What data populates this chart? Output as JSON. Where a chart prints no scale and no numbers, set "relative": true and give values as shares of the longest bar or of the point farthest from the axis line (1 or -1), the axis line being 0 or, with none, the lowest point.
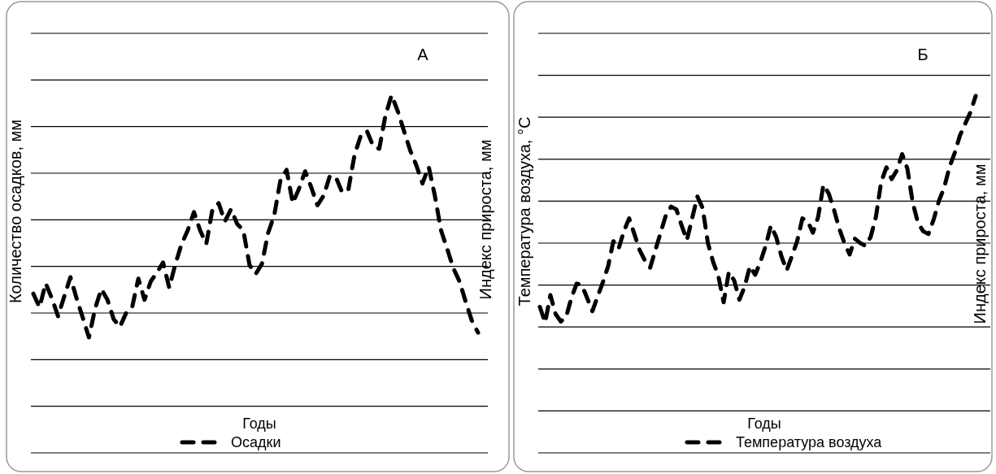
{
  "chart_data": [
    {
      "type": "line",
      "title": "А",
      "xlabel": "Годы",
      "ylabel": "Количество осадков, мм",
      "y2label": "Индекс прироста, мм",
      "relative": true,
      "grid": true,
      "legend": "bottom",
      "line_style": "dashed",
      "categories": [
        null,
        null,
        null,
        null,
        null,
        null,
        null,
        null,
        null,
        null,
        null,
        null,
        null,
        null,
        null,
        null,
        null,
        null,
        null,
        null,
        null,
        null,
        null,
        null,
        null,
        null,
        null,
        null,
        null,
        null,
        null,
        null,
        null,
        null,
        null,
        null,
        null,
        null,
        null,
        null,
        null,
        null,
        null,
        null,
        null,
        null,
        null,
        null,
        null,
        null,
        null,
        null,
        null,
        null,
        null,
        null,
        null,
        null,
        null,
        null,
        null,
        null,
        null,
        null,
        null,
        null,
        null,
        null,
        null,
        null,
        null,
        null,
        null
      ],
      "series": [
        {
          "name": "Осадки",
          "color": "#000000",
          "values": [
            0.445,
            0.407,
            0.474,
            0.432,
            0.382,
            0.437,
            0.491,
            0.432,
            0.378,
            0.323,
            0.403,
            0.458,
            0.428,
            0.374,
            0.352,
            0.39,
            0.407,
            0.487,
            0.428,
            0.479,
            0.504,
            0.532,
            0.462,
            0.528,
            0.584,
            0.622,
            0.673,
            0.622,
            0.584,
            0.681,
            0.698,
            0.647,
            0.681,
            0.64,
            0.622,
            0.525,
            0.5,
            0.528,
            0.614,
            0.664,
            0.762,
            0.791,
            0.698,
            0.738,
            0.787,
            0.742,
            0.692,
            0.719,
            0.774,
            0.77,
            0.728,
            0.736,
            0.833,
            0.886,
            0.9,
            0.858,
            0.85,
            0.943,
            1,
            0.955,
            0.9,
            0.846,
            0.804,
            0.753,
            0.8,
            0.719,
            0.622,
            0.57,
            0.516,
            0.479,
            0.422,
            0.369,
            0.336
          ]
        }
      ]
    },
    {
      "type": "line",
      "title": "Б",
      "xlabel": "Годы",
      "ylabel": "Температура воздуха, °С",
      "y2label": "Индекс прироста, мм",
      "relative": true,
      "grid": true,
      "legend": "bottom",
      "line_style": "dashed",
      "categories": [
        null,
        null,
        null,
        null,
        null,
        null,
        null,
        null,
        null,
        null,
        null,
        null,
        null,
        null,
        null,
        null,
        null,
        null,
        null,
        null,
        null,
        null,
        null,
        null,
        null,
        null,
        null,
        null,
        null,
        null,
        null,
        null,
        null,
        null,
        null,
        null,
        null,
        null,
        null,
        null,
        null,
        null,
        null,
        null,
        null,
        null,
        null,
        null,
        null,
        null,
        null,
        null,
        null,
        null,
        null,
        null,
        null,
        null,
        null,
        null,
        null,
        null,
        null,
        null,
        null,
        null,
        null,
        null,
        null,
        null,
        null,
        null,
        null,
        null,
        null,
        null,
        null,
        null,
        null,
        null,
        null,
        null,
        null,
        null
      ],
      "series": [
        {
          "name": "Температура воздуха",
          "color": "#000000",
          "values": [
            0.409,
            0.365,
            0.442,
            0.389,
            0.368,
            0.381,
            0.434,
            0.474,
            0.47,
            0.434,
            0.397,
            0.438,
            0.478,
            0.523,
            0.593,
            0.572,
            0.621,
            0.657,
            0.613,
            0.568,
            0.539,
            0.519,
            0.568,
            0.617,
            0.666,
            0.69,
            0.682,
            0.637,
            0.596,
            0.657,
            0.718,
            0.686,
            0.588,
            0.535,
            0.495,
            0.422,
            0.507,
            0.483,
            0.429,
            0.466,
            0.523,
            0.499,
            0.535,
            0.58,
            0.637,
            0.605,
            0.551,
            0.511,
            0.551,
            0.593,
            0.657,
            0.649,
            0.617,
            0.661,
            0.751,
            0.727,
            0.682,
            0.629,
            0.588,
            0.556,
            0.6,
            0.588,
            0.58,
            0.605,
            0.661,
            0.759,
            0.8,
            0.767,
            0.792,
            0.837,
            0.796,
            0.702,
            0.645,
            0.621,
            0.613,
            0.654,
            0.706,
            0.743,
            0.8,
            0.84,
            0.889,
            0.922,
            0.954,
            1
          ]
        }
      ]
    }
  ]
}
